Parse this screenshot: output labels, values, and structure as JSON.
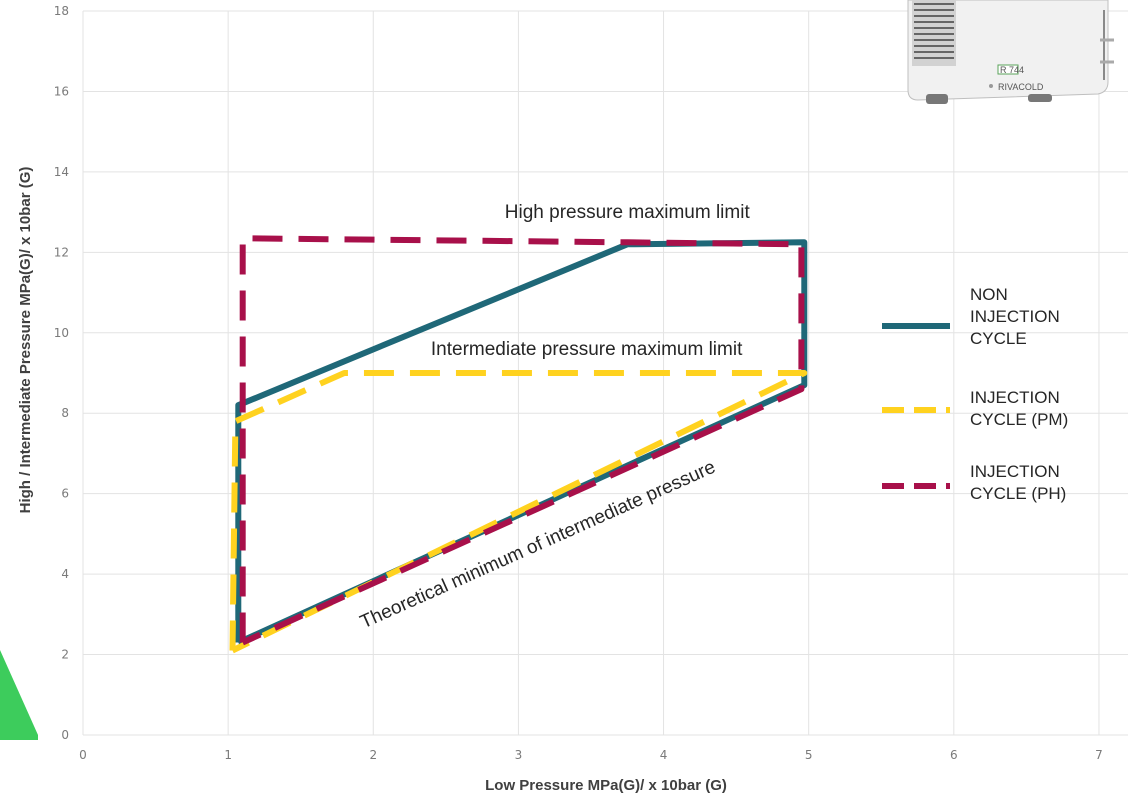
{
  "chart_data": {
    "type": "line",
    "title": "",
    "xlabel": "Low Pressure MPa(G)/ x 10bar (G)",
    "ylabel": "High / Intermediate Pressure MPa(G)/ x 10bar (G)",
    "xlim": [
      0,
      7.2
    ],
    "ylim": [
      0,
      18
    ],
    "x_ticks": [
      0,
      1,
      2,
      3,
      4,
      5,
      6,
      7
    ],
    "y_ticks": [
      0,
      2,
      4,
      6,
      8,
      10,
      12,
      14,
      16,
      18
    ],
    "grid": true,
    "legend_position": "right",
    "series": [
      {
        "name": "NON INJECTION CYCLE",
        "legend_lines": [
          "NON",
          "INJECTION",
          "CYCLE"
        ],
        "style": "solid",
        "color": "#1f6878",
        "points": [
          [
            1.07,
            2.3
          ],
          [
            1.07,
            8.2
          ],
          [
            3.75,
            12.2
          ],
          [
            4.97,
            12.25
          ],
          [
            4.97,
            8.7
          ],
          [
            1.07,
            2.3
          ]
        ]
      },
      {
        "name": "INJECTION CYCLE (PM)",
        "legend_lines": [
          "INJECTION",
          "CYCLE (PM)"
        ],
        "style": "dashed",
        "color": "#ffd21f",
        "points": [
          [
            1.03,
            2.1
          ],
          [
            1.05,
            7.8
          ],
          [
            1.8,
            9.0
          ],
          [
            4.97,
            9.0
          ],
          [
            1.03,
            2.1
          ]
        ]
      },
      {
        "name": "INJECTION CYCLE (PH)",
        "legend_lines": [
          "INJECTION",
          "CYCLE (PH)"
        ],
        "style": "dashed",
        "color": "#a8104a",
        "points": [
          [
            1.1,
            2.3
          ],
          [
            1.1,
            12.35
          ],
          [
            3.75,
            12.25
          ],
          [
            4.95,
            12.2
          ],
          [
            4.95,
            8.6
          ],
          [
            1.1,
            2.3
          ]
        ]
      }
    ],
    "annotations": [
      {
        "text": "High pressure maximum limit",
        "x": 3.75,
        "y": 12.85,
        "rotation": 0
      },
      {
        "text": "Intermediate pressure maximum limit",
        "x": 3.47,
        "y": 9.45,
        "rotation": 0
      },
      {
        "text": "Theoretical minimum of intermediate pressure",
        "x": 3.15,
        "y": 4.6,
        "rotation": -24
      }
    ]
  },
  "product_image": {
    "label_model": "R 744",
    "label_brand": "RIVACOLD"
  },
  "colors": {
    "grid": "#e3e3e3",
    "green_accent": "#3dcc5c"
  }
}
